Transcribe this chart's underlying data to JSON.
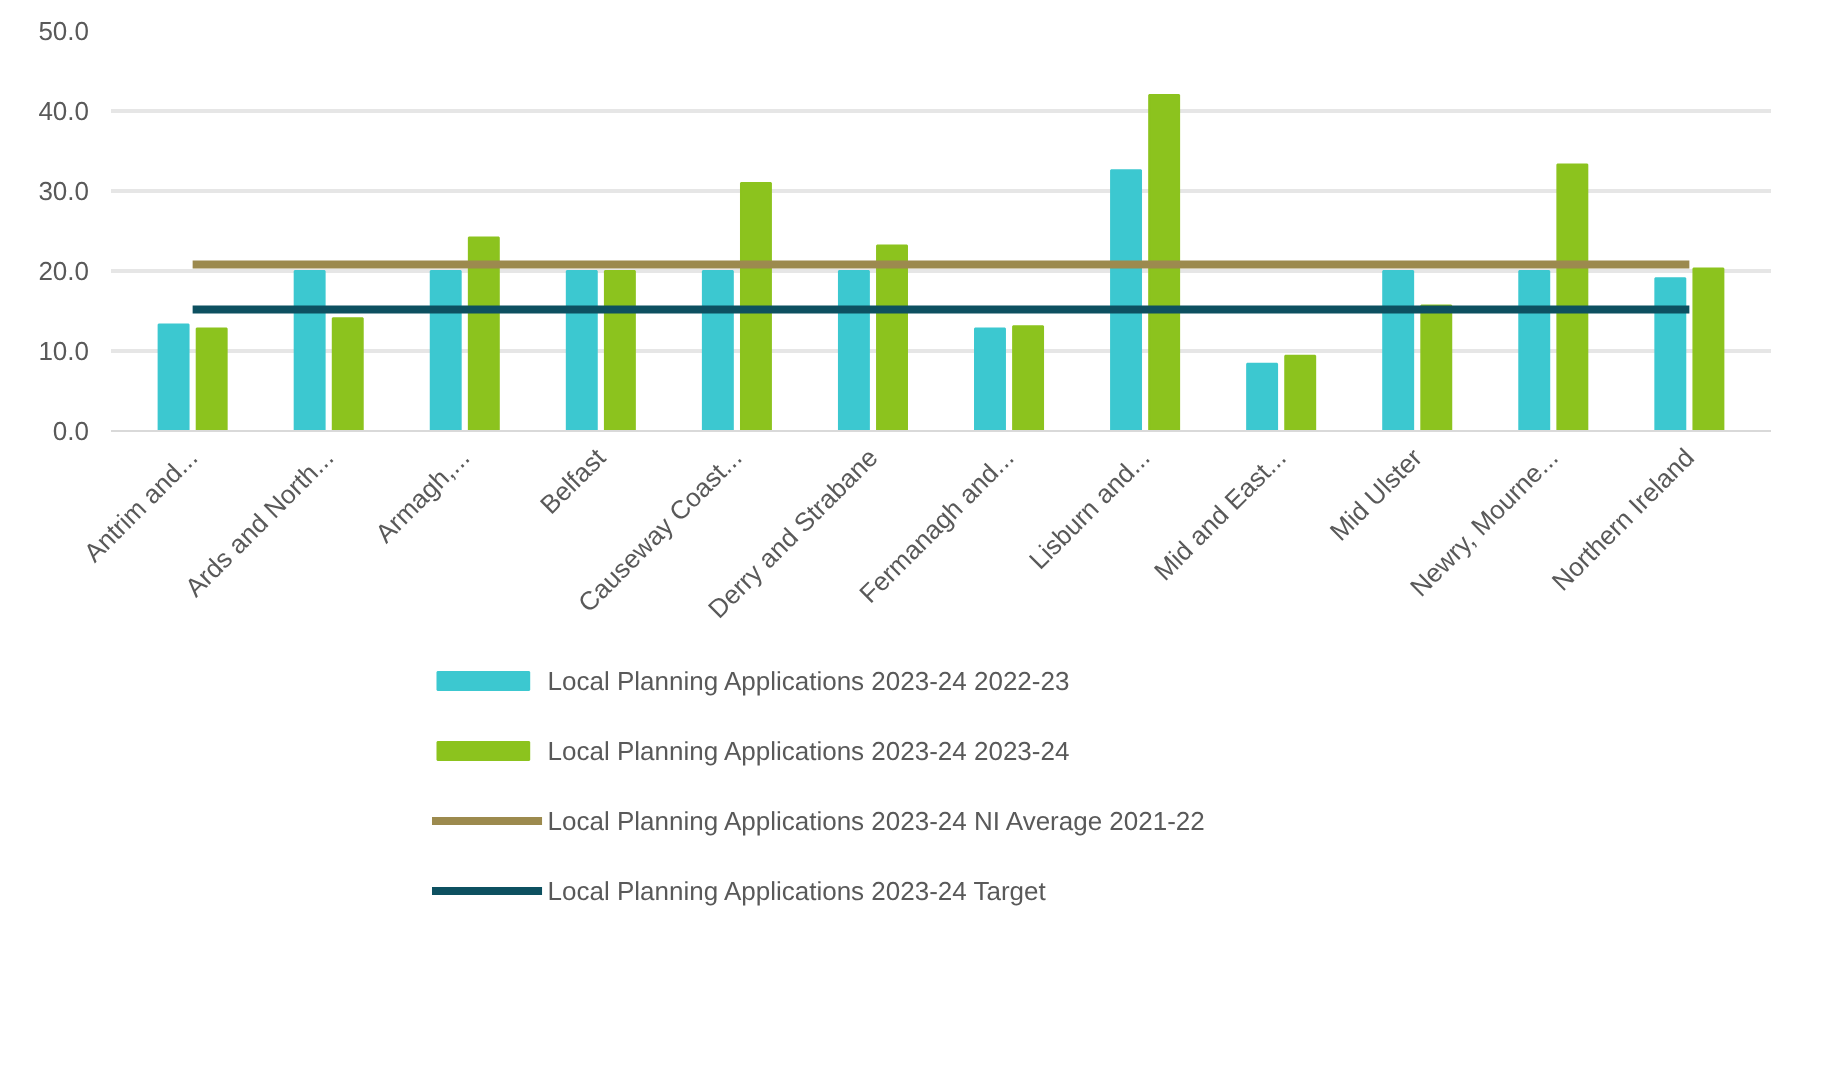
{
  "chart_data": {
    "type": "bar",
    "categories": [
      "Antrim and...",
      "Ards and North...",
      "Armagh,...",
      "Belfast",
      "Causeway Coast...",
      "Derry and Strabane",
      "Fermanagh and...",
      "Lisburn and...",
      "Mid and East...",
      "Mid Ulster",
      "Newry, Mourne...",
      "Northern Ireland"
    ],
    "series": [
      {
        "name": "Local Planning Applications 2023-24 2022-23",
        "color": "#3cc8d0",
        "values": [
          13.3,
          20.0,
          20.0,
          20.0,
          20.0,
          20.0,
          12.8,
          32.6,
          8.4,
          20.0,
          20.0,
          19.1
        ]
      },
      {
        "name": "Local Planning Applications 2023-24 2023-24",
        "color": "#8cc31e",
        "values": [
          12.8,
          14.1,
          24.2,
          20.0,
          31.0,
          23.2,
          13.1,
          42.0,
          9.4,
          15.7,
          33.3,
          20.3
        ]
      },
      {
        "name": "Local Planning Applications 2023-24 NI Average 2021-22",
        "type": "line",
        "color": "#9c8a4e",
        "values": [
          20.8,
          20.8,
          20.8,
          20.8,
          20.8,
          20.8,
          20.8,
          20.8,
          20.8,
          20.8,
          20.8,
          20.8
        ]
      },
      {
        "name": "Local Planning Applications 2023-24 Target",
        "type": "line",
        "color": "#0d5060",
        "values": [
          15.2,
          15.2,
          15.2,
          15.2,
          15.2,
          15.2,
          15.2,
          15.2,
          15.2,
          15.2,
          15.2,
          15.2
        ]
      }
    ],
    "ylim": [
      0,
      50
    ],
    "yticks": [
      {
        "value": 0,
        "label": "0.0"
      },
      {
        "value": 10,
        "label": "10.0"
      },
      {
        "value": 20,
        "label": "20.0"
      },
      {
        "value": 30,
        "label": "30.0"
      },
      {
        "value": 40,
        "label": "40.0"
      },
      {
        "value": 50,
        "label": "50.0"
      }
    ],
    "grid": "y",
    "legend": "bottom"
  }
}
